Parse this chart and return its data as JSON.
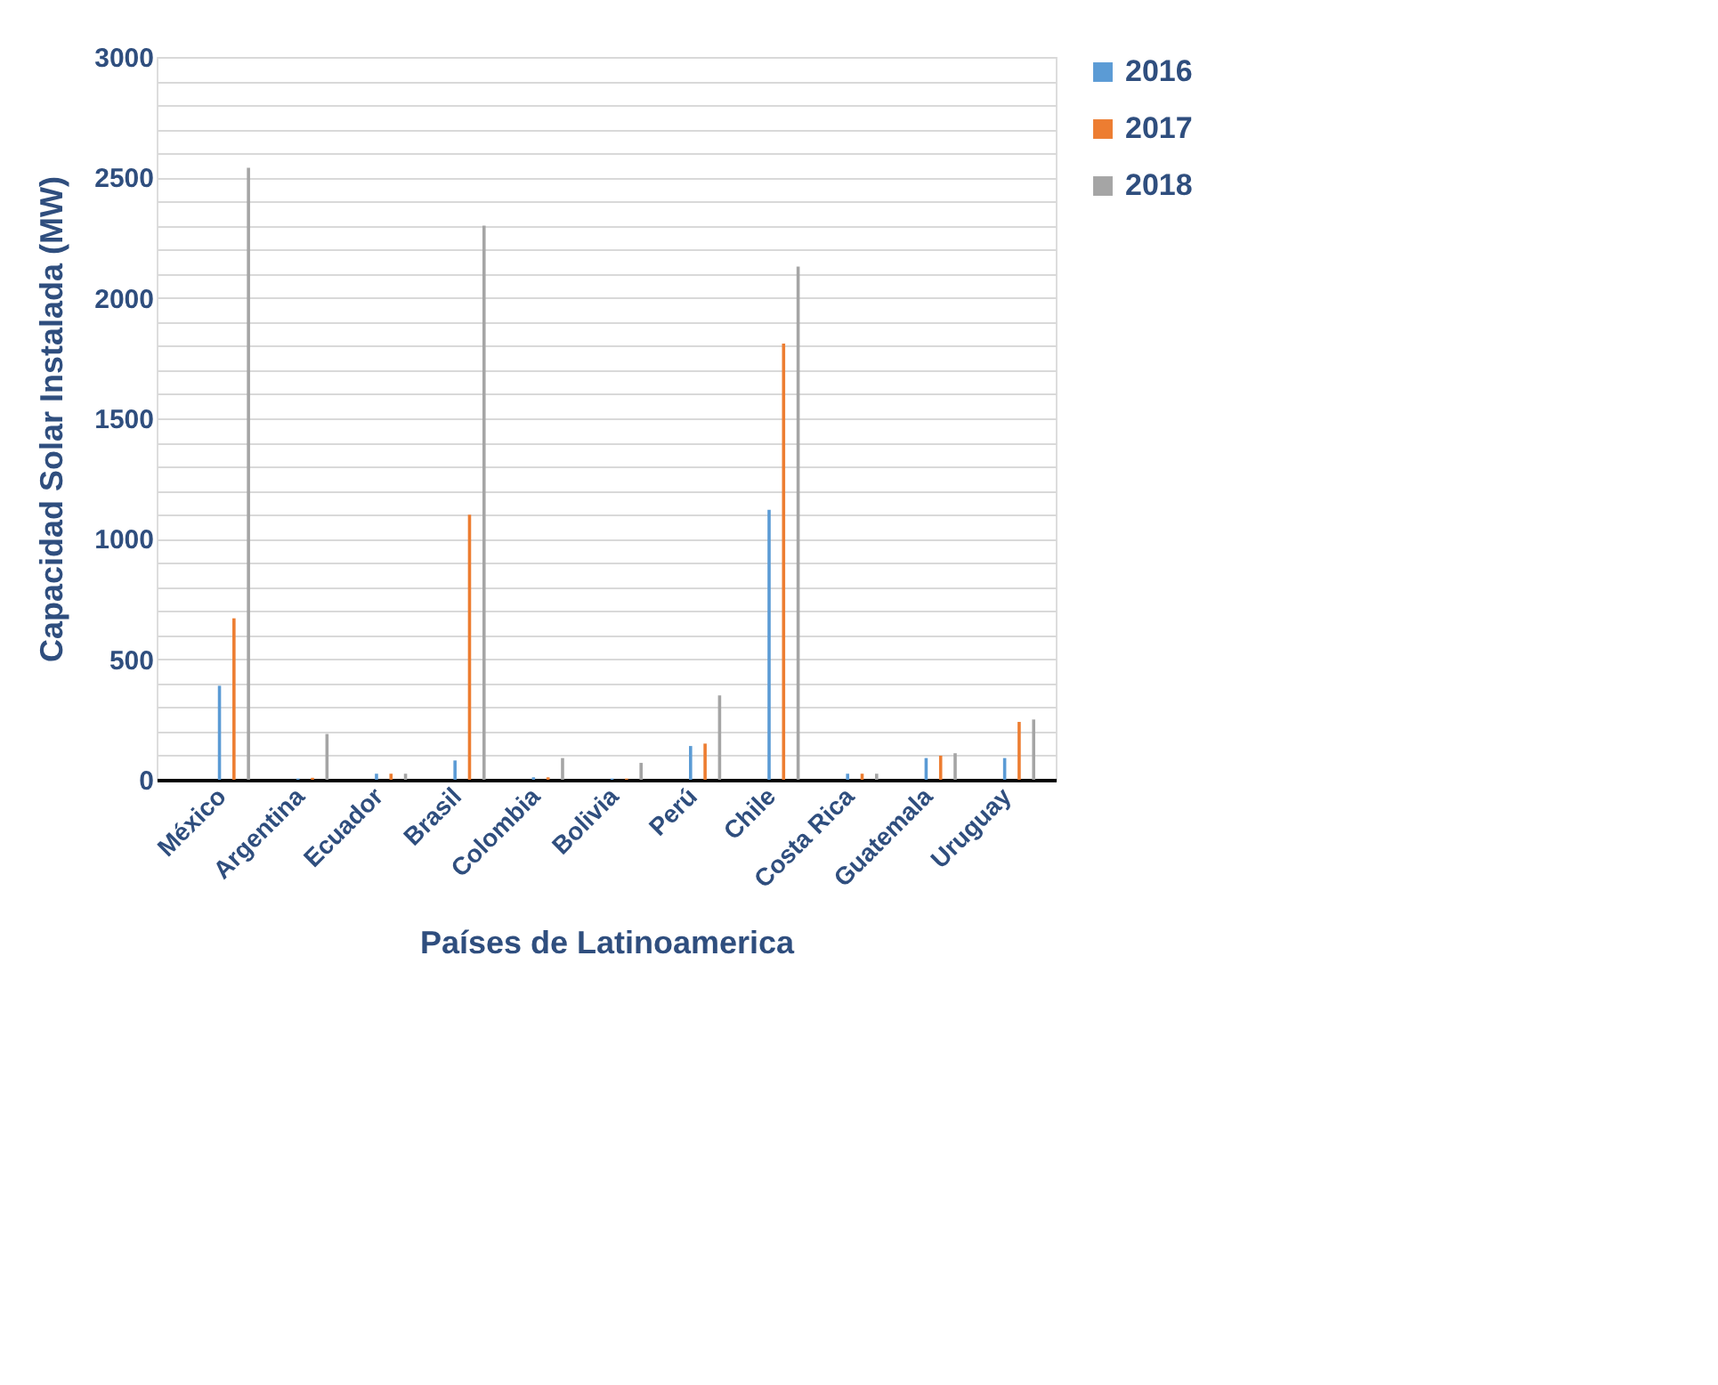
{
  "chart_data": {
    "type": "bar",
    "xlabel": "Países de Latinoamerica",
    "ylabel": "Capacidad Solar Instalada (MW)",
    "categories": [
      "México",
      "Argentina",
      "Ecuador",
      "Brasil",
      "Colombia",
      "Bolivia",
      "Perú",
      "Chile",
      "Costa Rica",
      "Guatemala",
      "Uruguay"
    ],
    "series": [
      {
        "name": "2016",
        "color": "#5b9bd5",
        "values": [
          390,
          5,
          25,
          80,
          10,
          5,
          140,
          1120,
          25,
          90,
          90
        ]
      },
      {
        "name": "2017",
        "color": "#ed7d31",
        "values": [
          670,
          8,
          25,
          1100,
          10,
          5,
          150,
          1810,
          25,
          100,
          240
        ]
      },
      {
        "name": "2018",
        "color": "#a5a5a5",
        "values": [
          2540,
          190,
          25,
          2300,
          90,
          70,
          350,
          2130,
          25,
          110,
          250
        ]
      }
    ],
    "ylim": [
      0,
      3000
    ],
    "yticks": [
      0,
      {
        "value": 100,
        "label": null
      },
      {
        "value": 200,
        "label": null
      },
      {
        "value": 300,
        "label": null
      },
      {
        "value": 400,
        "label": null
      },
      500,
      {
        "value": 600,
        "label": null
      },
      {
        "value": 700,
        "label": null
      },
      {
        "value": 800,
        "label": null
      },
      {
        "value": 900,
        "label": null
      },
      1000,
      {
        "value": 1100,
        "label": null
      },
      {
        "value": 1200,
        "label": null
      },
      {
        "value": 1300,
        "label": null
      },
      {
        "value": 1400,
        "label": null
      },
      1500,
      {
        "value": 1600,
        "label": null
      },
      {
        "value": 1700,
        "label": null
      },
      {
        "value": 1800,
        "label": null
      },
      {
        "value": 1900,
        "label": null
      },
      2000,
      {
        "value": 2100,
        "label": null
      },
      {
        "value": 2200,
        "label": null
      },
      {
        "value": 2300,
        "label": null
      },
      {
        "value": 2400,
        "label": null
      },
      2500,
      {
        "value": 2600,
        "label": null
      },
      {
        "value": 2700,
        "label": null
      },
      {
        "value": 2800,
        "label": null
      },
      {
        "value": 2900,
        "label": null
      },
      3000
    ],
    "grid": "y",
    "legend": "right"
  }
}
